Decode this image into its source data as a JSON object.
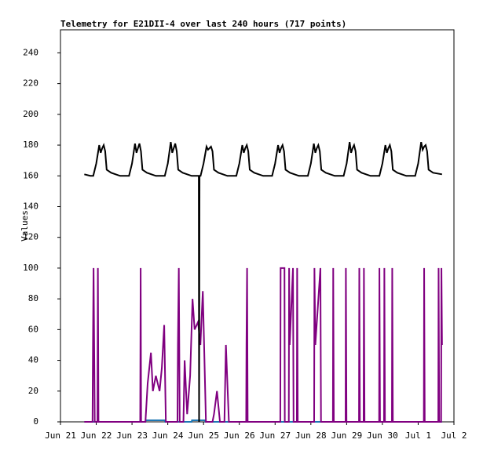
{
  "chart_data": {
    "type": "line",
    "title": "Telemetry for E21DII-4 over last 240 hours (717 points)",
    "y_label": "Values",
    "xlim": [
      0,
      264
    ],
    "xticks": [
      {
        "value": 0,
        "label": "Jun 21"
      },
      {
        "value": 24,
        "label": "Jun 22"
      },
      {
        "value": 48,
        "label": "Jun 23"
      },
      {
        "value": 72,
        "label": "Jun 24"
      },
      {
        "value": 96,
        "label": "Jun 25"
      },
      {
        "value": 120,
        "label": "Jun 26"
      },
      {
        "value": 144,
        "label": "Jun 27"
      },
      {
        "value": 168,
        "label": "Jun 28"
      },
      {
        "value": 192,
        "label": "Jun 29"
      },
      {
        "value": 216,
        "label": "Jun 30"
      },
      {
        "value": 240,
        "label": "Jul 1"
      },
      {
        "value": 264,
        "label": "Jul 2"
      }
    ],
    "ylim": [
      0,
      255
    ],
    "yticks": [
      0,
      20,
      40,
      60,
      80,
      100,
      120,
      140,
      160,
      180,
      200,
      220,
      240
    ],
    "grid": false,
    "series": [
      {
        "color": "#1f77b4",
        "x": [
          16,
          57,
          57.2,
          70,
          70.2,
          88,
          88.2,
          97,
          97.2,
          256
        ],
        "values": [
          0,
          0,
          1,
          1,
          0,
          0,
          1,
          1,
          0,
          0
        ]
      },
      {
        "color": "#800080",
        "x": [
          16,
          21.5,
          21.8,
          22.2,
          22.6,
          23,
          24.8,
          25.1,
          25.5,
          53.5,
          53.8,
          54.1,
          57,
          58.5,
          60.7,
          62,
          64,
          66.5,
          68,
          69.6,
          70.7,
          78.5,
          78.8,
          79.4,
          80,
          82.5,
          83.3,
          85,
          87,
          88.6,
          90,
          92.3,
          93.9,
          95.5,
          97.6,
          102,
          103,
          105,
          107,
          110,
          111,
          113,
          124.6,
          124.8,
          125.2,
          125.6,
          147.5,
          147.7,
          150.3,
          150.5,
          153.2,
          153.4,
          153.8,
          156,
          156.4,
          158.6,
          158.8,
          159.2,
          170.2,
          170.4,
          171,
          174.4,
          174.8,
          182.8,
          183,
          183.4,
          191.3,
          191.5,
          191.9,
          200.3,
          200.5,
          200.9,
          203.4,
          203.6,
          204,
          213.8,
          214,
          214.4,
          217.1,
          217.3,
          217.7,
          222.4,
          222.6,
          223,
          243.8,
          244,
          244.4,
          253.5,
          253.7,
          254.1,
          255.4,
          255.6,
          256
        ],
        "values": [
          0,
          0,
          50,
          100,
          50,
          0,
          0,
          100,
          0,
          0,
          100,
          0,
          0,
          25,
          45,
          20,
          30,
          20,
          35,
          63,
          0,
          0,
          50,
          100,
          0,
          0,
          40,
          5,
          30,
          80,
          60,
          65,
          50,
          85,
          0,
          0,
          5,
          20,
          0,
          0,
          50,
          0,
          0,
          50,
          100,
          0,
          0,
          100,
          100,
          0,
          0,
          100,
          50,
          100,
          0,
          0,
          100,
          0,
          0,
          100,
          50,
          100,
          0,
          0,
          100,
          0,
          0,
          100,
          0,
          0,
          100,
          0,
          0,
          100,
          0,
          0,
          100,
          0,
          0,
          100,
          0,
          0,
          100,
          0,
          0,
          100,
          0,
          0,
          100,
          0,
          0,
          100,
          50
        ]
      },
      {
        "color": "#000000",
        "x": [
          16,
          20,
          22,
          24,
          26,
          27,
          28,
          29,
          30,
          31,
          34,
          40,
          46,
          48,
          50,
          51,
          52,
          53,
          54,
          55,
          58,
          64,
          70,
          72,
          74,
          75,
          76,
          77,
          78,
          79,
          82,
          88,
          92.8,
          93,
          93.3,
          94,
          96,
          98,
          99,
          100,
          101,
          102,
          103,
          106,
          112,
          118,
          120,
          122,
          123,
          124,
          125,
          126,
          127,
          130,
          136,
          142,
          144,
          146,
          147,
          148,
          149,
          150,
          151,
          154,
          160,
          166,
          168,
          170,
          171,
          172,
          173,
          174,
          175,
          178,
          184,
          190,
          192,
          194,
          195,
          196,
          197,
          198,
          199,
          202,
          208,
          214,
          216,
          218,
          219,
          220,
          221,
          222,
          223,
          226,
          232,
          238,
          240,
          242,
          243,
          244,
          245,
          246,
          247,
          250,
          256
        ],
        "values": [
          161,
          160,
          160,
          168,
          180,
          175,
          178,
          180,
          176,
          164,
          162,
          160,
          160,
          168,
          181,
          175,
          178,
          181,
          176,
          164,
          162,
          160,
          160,
          168,
          182,
          175,
          178,
          181,
          176,
          164,
          162,
          160,
          160,
          0,
          160,
          160,
          168,
          179,
          177,
          178,
          179,
          176,
          164,
          162,
          160,
          160,
          168,
          180,
          175,
          178,
          180,
          176,
          164,
          162,
          160,
          160,
          168,
          180,
          175,
          178,
          180,
          176,
          164,
          162,
          160,
          160,
          168,
          181,
          175,
          178,
          180,
          176,
          164,
          162,
          160,
          160,
          168,
          182,
          175,
          178,
          180,
          176,
          164,
          162,
          160,
          160,
          168,
          180,
          175,
          178,
          180,
          176,
          164,
          162,
          160,
          160,
          168,
          182,
          177,
          179,
          180,
          176,
          164,
          162,
          161
        ]
      }
    ]
  }
}
